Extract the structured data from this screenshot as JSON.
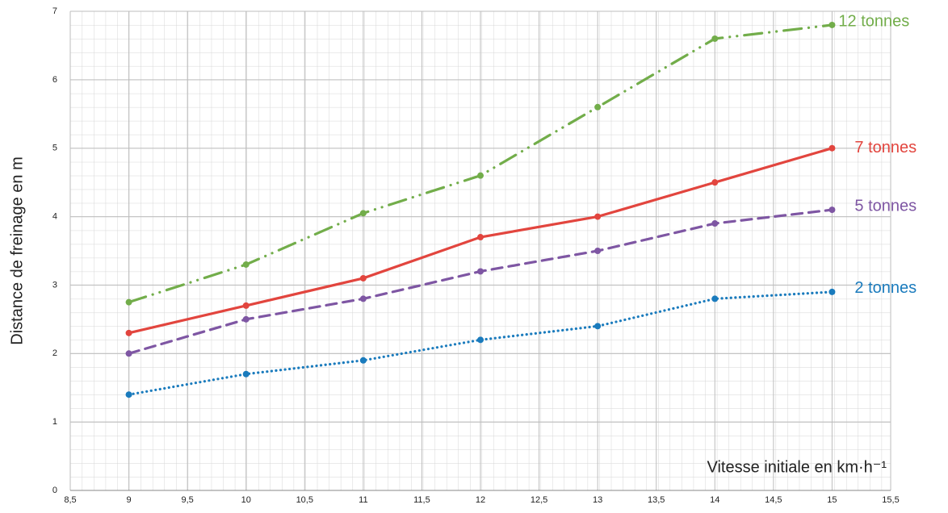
{
  "chart_data": {
    "type": "line",
    "x_label": "Vitesse initiale en km·h⁻¹",
    "y_label": "Distance de freinage en m",
    "x": [
      9,
      10,
      11,
      12,
      13,
      14,
      15
    ],
    "series": [
      {
        "name": "2 tonnes",
        "color": "#1a7bbd",
        "dash": "dotted",
        "values": [
          1.4,
          1.7,
          1.9,
          2.2,
          2.4,
          2.8,
          2.9
        ]
      },
      {
        "name": "5 tonnes",
        "color": "#7e56a3",
        "dash": "dashed",
        "values": [
          2.0,
          2.5,
          2.8,
          3.2,
          3.5,
          3.9,
          4.1
        ]
      },
      {
        "name": "7 tonnes",
        "color": "#e2453e",
        "dash": "solid",
        "values": [
          2.3,
          2.7,
          3.1,
          3.7,
          4.0,
          4.5,
          5.0
        ]
      },
      {
        "name": "12 tonnes",
        "color": "#72ad4a",
        "dash": "dashdotdot",
        "values": [
          2.75,
          3.3,
          4.05,
          4.6,
          5.6,
          6.6,
          6.8
        ]
      }
    ],
    "xlim": [
      8.5,
      15.5
    ],
    "xticks": [
      {
        "value": 8.5,
        "label": "8,5"
      },
      9,
      {
        "value": 9.5,
        "label": "9,5"
      },
      10,
      {
        "value": 10.5,
        "label": "10,5"
      },
      11,
      {
        "value": 11.5,
        "label": "11,5"
      },
      12,
      {
        "value": 12.5,
        "label": "12,5"
      },
      13,
      {
        "value": 13.5,
        "label": "13,5"
      },
      14,
      {
        "value": 14.5,
        "label": "14,5"
      },
      15,
      {
        "value": 15.5,
        "label": "15,5"
      }
    ],
    "ylim": [
      0,
      7
    ],
    "yticks": [
      0,
      1,
      2,
      3,
      4,
      5,
      6,
      7
    ],
    "grid": true
  }
}
